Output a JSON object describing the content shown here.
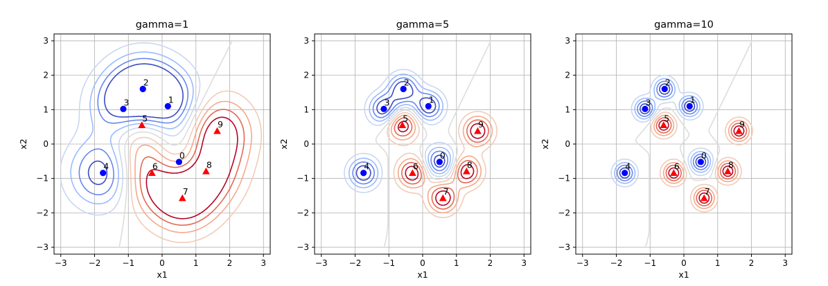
{
  "chart_data": [
    {
      "type": "scatter",
      "title": "gamma=1",
      "xlabel": "x1",
      "ylabel": "x2",
      "xlim": [
        -3.2,
        3.2
      ],
      "ylim": [
        -3.2,
        3.2
      ],
      "xticks": [
        "−3",
        "−2",
        "−1",
        "0",
        "1",
        "2",
        "3"
      ],
      "yticks": [
        "−3",
        "−2",
        "−1",
        "0",
        "1",
        "2",
        "3"
      ],
      "grid": true,
      "legend": "none"
    },
    {
      "type": "scatter",
      "title": "gamma=5",
      "xlabel": "x1",
      "ylabel": "x2",
      "xlim": [
        -3.2,
        3.2
      ],
      "ylim": [
        -3.2,
        3.2
      ],
      "xticks": [
        "−3",
        "−2",
        "−1",
        "0",
        "1",
        "2",
        "3"
      ],
      "yticks": [
        "−3",
        "−2",
        "−1",
        "0",
        "1",
        "2",
        "3"
      ],
      "grid": true,
      "legend": "none"
    },
    {
      "type": "scatter",
      "title": "gamma=10",
      "xlabel": "x1",
      "ylabel": "x2",
      "xlim": [
        -3.2,
        3.2
      ],
      "ylim": [
        -3.2,
        3.2
      ],
      "xticks": [
        "−3",
        "−2",
        "−1",
        "0",
        "1",
        "2",
        "3"
      ],
      "yticks": [
        "−3",
        "−2",
        "−1",
        "0",
        "1",
        "2",
        "3"
      ],
      "grid": true,
      "legend": "none"
    }
  ],
  "gammas": [
    1,
    5,
    10
  ],
  "points": [
    {
      "label": "0",
      "x": 0.5,
      "y": -0.52,
      "class": "circle"
    },
    {
      "label": "1",
      "x": 0.17,
      "y": 1.1,
      "class": "circle"
    },
    {
      "label": "2",
      "x": -0.57,
      "y": 1.6,
      "class": "circle"
    },
    {
      "label": "3",
      "x": -1.15,
      "y": 1.02,
      "class": "circle"
    },
    {
      "label": "4",
      "x": -1.75,
      "y": -0.84,
      "class": "circle"
    },
    {
      "label": "5",
      "x": -0.6,
      "y": 0.55,
      "class": "triangle"
    },
    {
      "label": "6",
      "x": -0.3,
      "y": -0.84,
      "class": "triangle"
    },
    {
      "label": "7",
      "x": 0.6,
      "y": -1.57,
      "class": "triangle"
    },
    {
      "label": "8",
      "x": 1.3,
      "y": -0.79,
      "class": "triangle"
    },
    {
      "label": "9",
      "x": 1.63,
      "y": 0.38,
      "class": "triangle"
    }
  ],
  "colors": {
    "circle": "#0000ff",
    "triangle": "#ff0000",
    "grid": "#b0b0b0",
    "contour_levels": [
      "#3b4cc0",
      "#6788ee",
      "#9abbff",
      "#c9d7f0",
      "#dddddd",
      "#f2cbb7",
      "#f7a889",
      "#e26952",
      "#b40426"
    ]
  }
}
